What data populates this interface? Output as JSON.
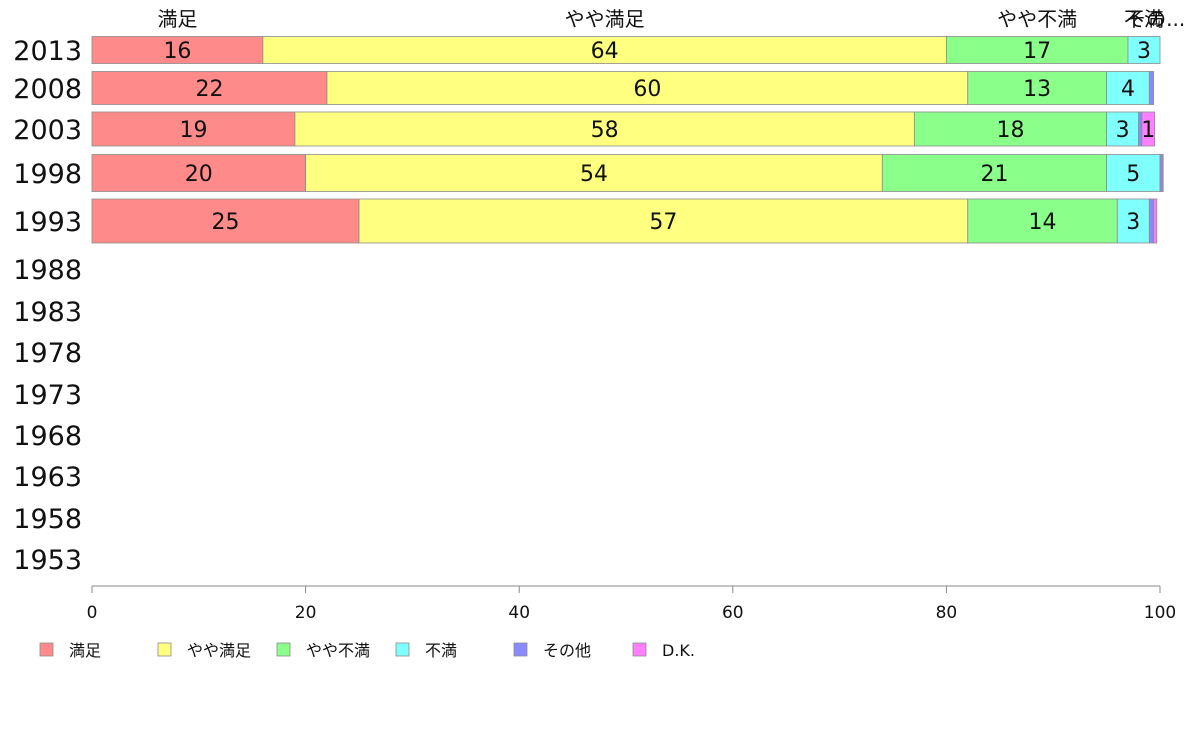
{
  "chart_data": {
    "type": "bar",
    "orientation": "horizontal",
    "stacked": true,
    "categories": [
      "2013",
      "2008",
      "2003",
      "1998",
      "1993",
      "1988",
      "1983",
      "1978",
      "1973",
      "1968",
      "1963",
      "1958",
      "1953"
    ],
    "series": [
      {
        "name": "満足",
        "color": "#ff8a8a",
        "values": [
          16,
          22,
          19,
          20,
          25,
          null,
          null,
          null,
          null,
          null,
          null,
          null,
          null
        ]
      },
      {
        "name": "やや満足",
        "color": "#ffff80",
        "values": [
          64,
          60,
          58,
          54,
          57,
          null,
          null,
          null,
          null,
          null,
          null,
          null,
          null
        ]
      },
      {
        "name": "やや不満",
        "color": "#8aff8a",
        "values": [
          17,
          13,
          18,
          21,
          14,
          null,
          null,
          null,
          null,
          null,
          null,
          null,
          null
        ]
      },
      {
        "name": "不満",
        "color": "#80ffff",
        "values": [
          3,
          4,
          3,
          5,
          3,
          null,
          null,
          null,
          null,
          null,
          null,
          null,
          null
        ]
      },
      {
        "name": "その他",
        "color": "#8a8aff",
        "values": [
          0,
          0.4,
          0.3,
          0.2,
          0.4,
          null,
          null,
          null,
          null,
          null,
          null,
          null,
          null
        ]
      },
      {
        "name": "D.K.",
        "color": "#ff80ff",
        "values": [
          0,
          0,
          1.2,
          0.1,
          0.3,
          null,
          null,
          null,
          null,
          null,
          null,
          null,
          null
        ]
      }
    ],
    "value_labels": [
      [
        "16",
        "64",
        "17",
        "3",
        "",
        ""
      ],
      [
        "22",
        "60",
        "13",
        "4",
        "",
        ""
      ],
      [
        "19",
        "58",
        "18",
        "3",
        "",
        "1"
      ],
      [
        "20",
        "54",
        "21",
        "5",
        "",
        ""
      ],
      [
        "25",
        "57",
        "14",
        "3",
        "",
        ""
      ]
    ],
    "top_labels": [
      {
        "text": "満足",
        "value": 8
      },
      {
        "text": "やや満足",
        "value": 48
      },
      {
        "text": "やや不満",
        "value": 88.5
      },
      {
        "text": "不満",
        "value": 98.5
      },
      {
        "text": "その...",
        "value": 99.6
      }
    ],
    "xlim": [
      0,
      100
    ],
    "xticks": [
      0,
      20,
      40,
      60,
      80,
      100
    ],
    "grid": false,
    "legend": "bottom-left"
  }
}
